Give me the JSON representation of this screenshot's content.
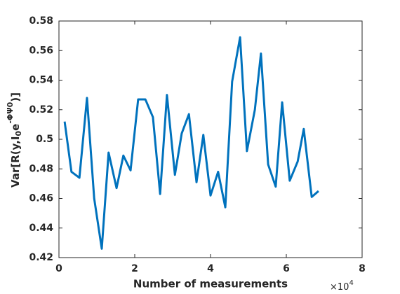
{
  "chart_data": {
    "type": "line",
    "xlabel": "Number of measurements",
    "x_scale_base": "×10",
    "x_scale_exponent": "4",
    "ylabel_parts": [
      "Var[R(y,I",
      "0",
      "e",
      "-ΦΨ0",
      ")]"
    ],
    "x": [
      0.15,
      0.33,
      0.54,
      0.74,
      0.93,
      1.13,
      1.31,
      1.52,
      1.7,
      1.89,
      2.09,
      2.28,
      2.48,
      2.67,
      2.85,
      3.06,
      3.24,
      3.43,
      3.63,
      3.81,
      4.0,
      4.2,
      4.39,
      4.57,
      4.78,
      4.96,
      5.17,
      5.33,
      5.52,
      5.72,
      5.89,
      6.09,
      6.3,
      6.46,
      6.67,
      6.85
    ],
    "series": [
      {
        "color": "#0072bd",
        "values": [
          0.512,
          0.478,
          0.474,
          0.528,
          0.46,
          0.426,
          0.491,
          0.467,
          0.489,
          0.479,
          0.527,
          0.527,
          0.515,
          0.463,
          0.53,
          0.476,
          0.504,
          0.517,
          0.471,
          0.503,
          0.462,
          0.478,
          0.454,
          0.539,
          0.569,
          0.492,
          0.52,
          0.558,
          0.483,
          0.468,
          0.525,
          0.472,
          0.485,
          0.507,
          0.461,
          0.465
        ]
      }
    ],
    "xlim": [
      0,
      8
    ],
    "xticks": [
      0,
      2,
      4,
      6,
      8
    ],
    "ylim": [
      0.42,
      0.58
    ],
    "yticks": [
      0.42,
      0.44,
      0.46,
      0.48,
      0.5,
      0.52,
      0.54,
      0.56,
      0.58
    ],
    "grid": false
  }
}
